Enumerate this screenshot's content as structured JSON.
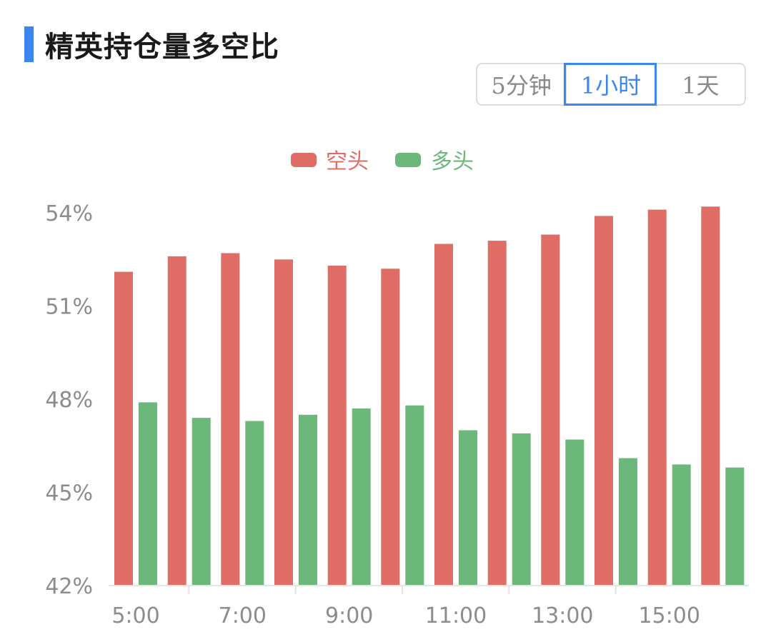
{
  "header": {
    "title": "精英持仓量多空比"
  },
  "period_tabs": [
    {
      "label": "5分钟",
      "active": false
    },
    {
      "label": "1小时",
      "active": true
    },
    {
      "label": "1天",
      "active": false
    }
  ],
  "colors": {
    "accent": "#3b86f0",
    "short": "#e06c66",
    "long": "#6bb87a"
  },
  "chart_data": {
    "type": "bar",
    "title": "",
    "xlabel": "",
    "ylabel": "",
    "x_tick_labels": [
      "5:00",
      "7:00",
      "9:00",
      "11:00",
      "13:00",
      "15:00"
    ],
    "categories": [
      "5:00",
      "6:00",
      "7:00",
      "8:00",
      "9:00",
      "10:00",
      "11:00",
      "12:00",
      "13:00",
      "14:00",
      "15:00",
      "16:00"
    ],
    "y_ticks": [
      "54%",
      "51%",
      "48%",
      "45%",
      "42%"
    ],
    "ylim": [
      42,
      54.5
    ],
    "grid": false,
    "legend_position": "top-center",
    "series": [
      {
        "name": "空头",
        "color": "#e06c66",
        "values": [
          52.1,
          52.6,
          52.7,
          52.5,
          52.3,
          52.2,
          53.0,
          53.1,
          53.3,
          53.9,
          54.1,
          54.2
        ]
      },
      {
        "name": "多头",
        "color": "#6bb87a",
        "values": [
          47.9,
          47.4,
          47.3,
          47.5,
          47.7,
          47.8,
          47.0,
          46.9,
          46.7,
          46.1,
          45.9,
          45.8
        ]
      }
    ]
  }
}
